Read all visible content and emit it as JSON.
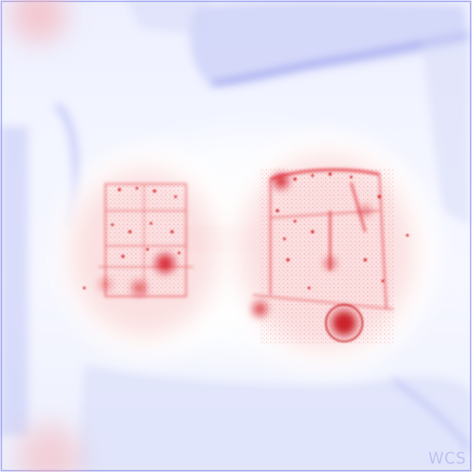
{
  "image": {
    "corner_mark": "WCS"
  },
  "colors": {
    "positive": "#e0202a",
    "negative": "#3a45d8",
    "neutral": "#ffffff"
  },
  "icons": [
    "left-vehicle-heat-icon",
    "right-vehicle-heat-icon"
  ]
}
